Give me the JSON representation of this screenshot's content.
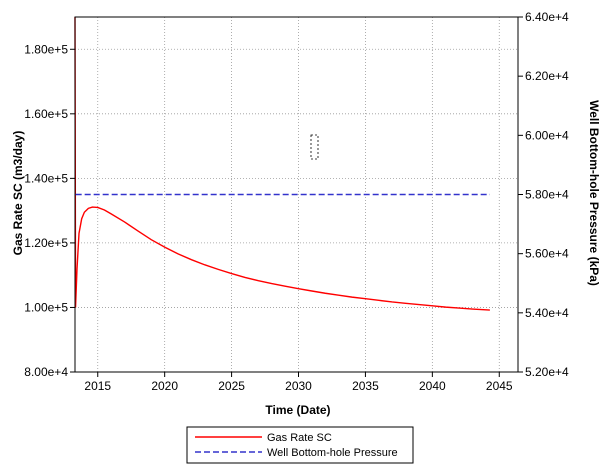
{
  "chart_data": {
    "type": "line",
    "xlabel": "Time (Date)",
    "ylabel_left": "Gas Rate SC (m3/day)",
    "ylabel_right": "Well Bottom-hole Pressure (kPa)",
    "xlim": [
      2013.3,
      2046.4
    ],
    "ylim_left": [
      80000,
      190000
    ],
    "ylim_right": [
      52000,
      64000
    ],
    "grid": true,
    "legend_position": "bottom",
    "x_ticks": [
      2015,
      2020,
      2025,
      2030,
      2035,
      2040,
      2045
    ],
    "x_tick_labels": [
      "2015",
      "2020",
      "2025",
      "2030",
      "2035",
      "2040",
      "2045"
    ],
    "y_left_ticks": [
      80000,
      100000,
      120000,
      140000,
      160000,
      180000
    ],
    "y_left_tick_labels": [
      "8.00e+4",
      "1.00e+5",
      "1.20e+5",
      "1.40e+5",
      "1.60e+5",
      "1.80e+5"
    ],
    "y_right_ticks": [
      52000,
      54000,
      56000,
      58000,
      60000,
      62000,
      64000
    ],
    "y_right_tick_labels": [
      "5.20e+4",
      "5.40e+4",
      "5.60e+4",
      "5.80e+4",
      "6.00e+4",
      "6.20e+4",
      "6.40e+4"
    ],
    "series": [
      {
        "name": "Gas Rate SC",
        "axis": "left",
        "color": "#ff0000",
        "dash": "solid",
        "points": [
          [
            2013.3,
            190000
          ],
          [
            2013.34,
            100000
          ],
          [
            2013.45,
            112000
          ],
          [
            2013.6,
            123000
          ],
          [
            2013.8,
            127500
          ],
          [
            2014.0,
            129500
          ],
          [
            2014.3,
            130700
          ],
          [
            2014.6,
            131100
          ],
          [
            2015.0,
            131000
          ],
          [
            2015.5,
            130200
          ],
          [
            2016.0,
            129000
          ],
          [
            2017.0,
            126500
          ],
          [
            2018.0,
            123700
          ],
          [
            2019.0,
            121000
          ],
          [
            2020.0,
            118700
          ],
          [
            2021.0,
            116600
          ],
          [
            2022.0,
            114800
          ],
          [
            2023.0,
            113200
          ],
          [
            2024.0,
            111800
          ],
          [
            2025.0,
            110500
          ],
          [
            2026.0,
            109300
          ],
          [
            2027.0,
            108300
          ],
          [
            2028.0,
            107400
          ],
          [
            2029.0,
            106600
          ],
          [
            2030.0,
            105800
          ],
          [
            2031.0,
            105100
          ],
          [
            2032.0,
            104400
          ],
          [
            2033.0,
            103800
          ],
          [
            2034.0,
            103200
          ],
          [
            2035.0,
            102700
          ],
          [
            2036.0,
            102200
          ],
          [
            2037.0,
            101700
          ],
          [
            2038.0,
            101300
          ],
          [
            2039.0,
            100900
          ],
          [
            2040.0,
            100500
          ],
          [
            2041.0,
            100100
          ],
          [
            2042.0,
            99800
          ],
          [
            2043.0,
            99500
          ],
          [
            2044.3,
            99200
          ]
        ]
      },
      {
        "name": "Well Bottom-hole Pressure",
        "axis": "right",
        "color": "#3333cc",
        "dash": "dashed",
        "points": [
          [
            2013.35,
            58000
          ],
          [
            2044.3,
            58000
          ]
        ]
      }
    ],
    "legend": [
      {
        "label": "Gas Rate SC",
        "color": "#ff0000",
        "dash": "solid"
      },
      {
        "label": "Well Bottom-hole Pressure",
        "color": "#3333cc",
        "dash": "dashed"
      }
    ]
  }
}
